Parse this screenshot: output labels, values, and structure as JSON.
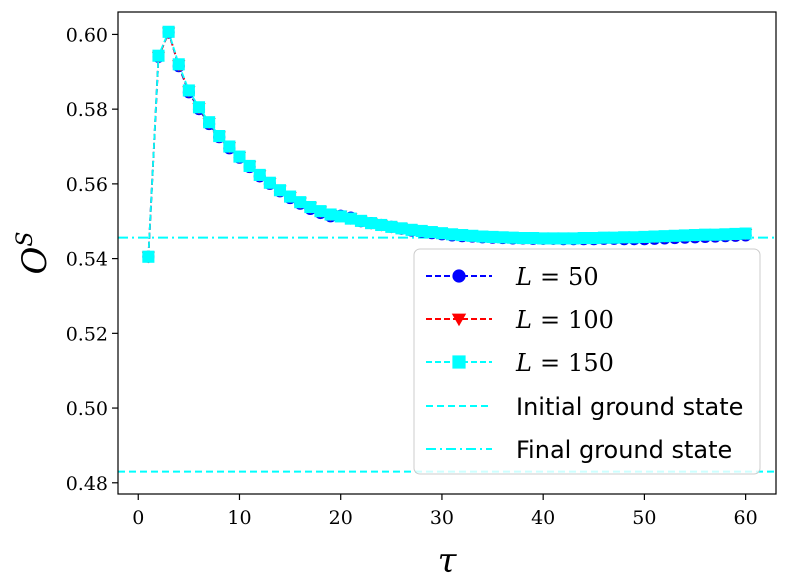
{
  "chart_data": {
    "type": "line",
    "title": "",
    "xlabel": "τ",
    "ylabel": "O",
    "ylabel_superscript": "S",
    "xlim": [
      -2,
      63
    ],
    "ylim": [
      0.477,
      0.606
    ],
    "xticks": [
      0,
      10,
      20,
      30,
      40,
      50,
      60
    ],
    "xtick_labels": [
      "0",
      "10",
      "20",
      "30",
      "40",
      "50",
      "60"
    ],
    "yticks": [
      0.48,
      0.5,
      0.52,
      0.54,
      0.56,
      0.58,
      0.6
    ],
    "ytick_labels": [
      "0.48",
      "0.50",
      "0.52",
      "0.54",
      "0.56",
      "0.58",
      "0.60"
    ],
    "grid": false,
    "legend_position": "lower-right",
    "colors": {
      "L50": "#0000ff",
      "L100": "#ff0000",
      "L150": "#00ffff",
      "initial": "#00ffff",
      "final": "#00ffff"
    },
    "x": [
      1,
      2,
      3,
      4,
      5,
      6,
      7,
      8,
      9,
      10,
      11,
      12,
      13,
      14,
      15,
      16,
      17,
      18,
      19,
      20,
      21,
      22,
      23,
      24,
      25,
      26,
      27,
      28,
      29,
      30,
      31,
      32,
      33,
      34,
      35,
      36,
      37,
      38,
      39,
      40,
      41,
      42,
      43,
      44,
      45,
      46,
      47,
      48,
      49,
      50,
      51,
      52,
      53,
      54,
      55,
      56,
      57,
      58,
      59,
      60
    ],
    "series": [
      {
        "name": "L50",
        "label_var": "L",
        "label_value": "50",
        "marker": "circle",
        "values": [
          0.5405,
          0.594,
          0.6005,
          0.5915,
          0.5845,
          0.58,
          0.576,
          0.5725,
          0.5695,
          0.567,
          0.5645,
          0.562,
          0.56,
          0.558,
          0.5562,
          0.5547,
          0.5533,
          0.5522,
          0.5513,
          0.5515,
          0.551,
          0.55,
          0.5495,
          0.549,
          0.5485,
          0.548,
          0.5475,
          0.5472,
          0.5468,
          0.5465,
          0.5462,
          0.546,
          0.5459,
          0.5457,
          0.5456,
          0.5455,
          0.5454,
          0.5454,
          0.5453,
          0.5453,
          0.5453,
          0.5452,
          0.5452,
          0.5452,
          0.5452,
          0.5453,
          0.5453,
          0.5452,
          0.5452,
          0.5452,
          0.5453,
          0.5454,
          0.5455,
          0.5456,
          0.5457,
          0.5458,
          0.5459,
          0.546,
          0.5461,
          0.5462
        ]
      },
      {
        "name": "L100",
        "label_var": "L",
        "label_value": "100",
        "marker": "triangle-down",
        "values": [
          0.5405,
          0.594,
          0.6005,
          0.5918,
          0.5848,
          0.5803,
          0.5763,
          0.5727,
          0.5698,
          0.5672,
          0.5647,
          0.5623,
          0.5602,
          0.5582,
          0.5565,
          0.555,
          0.5537,
          0.5526,
          0.5517,
          0.5515,
          0.5508,
          0.5501,
          0.5495,
          0.549,
          0.5485,
          0.5481,
          0.5477,
          0.5474,
          0.5471,
          0.5468,
          0.5465,
          0.5463,
          0.5461,
          0.5459,
          0.5458,
          0.5457,
          0.5456,
          0.5455,
          0.5455,
          0.5454,
          0.5454,
          0.5454,
          0.5454,
          0.5455,
          0.5455,
          0.5456,
          0.5456,
          0.5456,
          0.5457,
          0.5457,
          0.5458,
          0.5459,
          0.546,
          0.5461,
          0.5462,
          0.5463,
          0.5463,
          0.5464,
          0.5465,
          0.5466
        ]
      },
      {
        "name": "L150",
        "label_var": "L",
        "label_value": "150",
        "marker": "square",
        "values": [
          0.5405,
          0.5943,
          0.6007,
          0.592,
          0.585,
          0.5805,
          0.5765,
          0.5728,
          0.57,
          0.5673,
          0.5648,
          0.5624,
          0.5603,
          0.5583,
          0.5566,
          0.5551,
          0.5538,
          0.5527,
          0.5518,
          0.5513,
          0.5507,
          0.5501,
          0.5495,
          0.549,
          0.5485,
          0.5481,
          0.5477,
          0.5474,
          0.5471,
          0.5468,
          0.5465,
          0.5463,
          0.5461,
          0.5459,
          0.5458,
          0.5457,
          0.5456,
          0.5455,
          0.5455,
          0.5454,
          0.5454,
          0.5454,
          0.5454,
          0.5455,
          0.5455,
          0.5456,
          0.5456,
          0.5457,
          0.5457,
          0.5458,
          0.5459,
          0.546,
          0.5461,
          0.5462,
          0.5463,
          0.5464,
          0.5464,
          0.5465,
          0.5466,
          0.5467
        ]
      }
    ],
    "reference_lines": [
      {
        "name": "initial",
        "label": "Initial ground state",
        "y": 0.483,
        "style": "dashed"
      },
      {
        "name": "final",
        "label": "Final ground state",
        "y": 0.5456,
        "style": "dashdot"
      }
    ],
    "legend_math_separator": "="
  }
}
